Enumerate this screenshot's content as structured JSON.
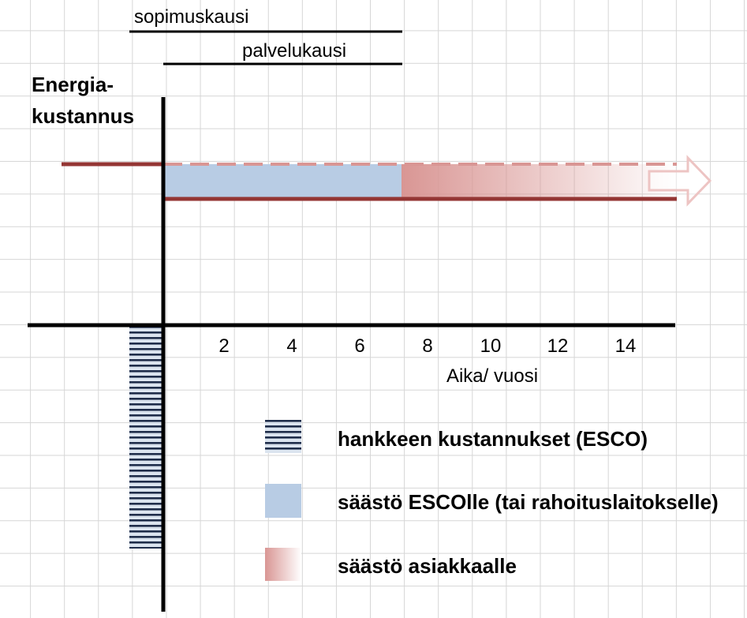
{
  "periods": {
    "contract": "sopimuskausi",
    "service": "palvelukausi"
  },
  "y_axis_label": [
    "Energia-",
    "kustannus"
  ],
  "x_axis": {
    "ticks": [
      "2",
      "4",
      "6",
      "8",
      "10",
      "12",
      "14"
    ],
    "label": "Aika/ vuosi"
  },
  "legend": [
    {
      "label": "hankkeen kustannukset (ESCO)",
      "icon": "striped-swatch"
    },
    {
      "label": "säästö ESCOlle (tai rahoituslaitokselle)",
      "icon": "blue-swatch",
      "color": "#b8cce4"
    },
    {
      "label": "säästö asiakkaalle",
      "icon": "red-gradient-swatch",
      "color": "#d99694"
    }
  ],
  "colors": {
    "cost_line": "#943634",
    "esco_saving": "#b8cce4",
    "client_saving": "#d99694"
  },
  "timeline": {
    "service_period_years": 7,
    "projection_end_years": 15
  }
}
